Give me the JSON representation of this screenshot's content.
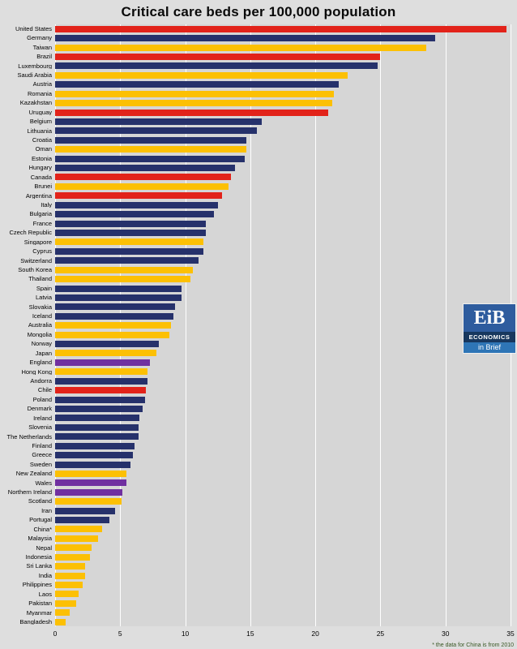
{
  "footnote": "* the data for China is from 2010",
  "logo": {
    "main": "EiB",
    "line1": "ECONOMICS",
    "line2": "in Brief"
  },
  "colors": {
    "red": "#e2231a",
    "navy": "#26316b",
    "gold": "#fcc004",
    "purple": "#7030a0",
    "plot_bg": "#d6d6d6",
    "gridline": "#ffffff"
  },
  "chart_data": {
    "type": "bar",
    "orientation": "horizontal",
    "title": "Critical care beds per 100,000 population",
    "xlabel": "",
    "ylabel": "",
    "xlim": [
      0,
      35
    ],
    "xticks": [
      "0",
      "5",
      "10",
      "15",
      "20",
      "25",
      "30",
      "35"
    ],
    "grid": true,
    "legend": false,
    "bars": [
      {
        "label": "United States",
        "value": 34.7,
        "color": "red"
      },
      {
        "label": "Germany",
        "value": 29.2,
        "color": "navy"
      },
      {
        "label": "Taiwan",
        "value": 28.5,
        "color": "gold"
      },
      {
        "label": "Brazil",
        "value": 25.0,
        "color": "red"
      },
      {
        "label": "Luxembourg",
        "value": 24.8,
        "color": "navy"
      },
      {
        "label": "Saudi Arabia",
        "value": 22.5,
        "color": "gold"
      },
      {
        "label": "Austria",
        "value": 21.8,
        "color": "navy"
      },
      {
        "label": "Romania",
        "value": 21.4,
        "color": "gold"
      },
      {
        "label": "Kazakhstan",
        "value": 21.3,
        "color": "gold"
      },
      {
        "label": "Uruguay",
        "value": 21.0,
        "color": "red"
      },
      {
        "label": "Belgium",
        "value": 15.9,
        "color": "navy"
      },
      {
        "label": "Lithuania",
        "value": 15.5,
        "color": "navy"
      },
      {
        "label": "Croatia",
        "value": 14.7,
        "color": "navy"
      },
      {
        "label": "Oman",
        "value": 14.7,
        "color": "gold"
      },
      {
        "label": "Estonia",
        "value": 14.6,
        "color": "navy"
      },
      {
        "label": "Hungary",
        "value": 13.8,
        "color": "navy"
      },
      {
        "label": "Canada",
        "value": 13.5,
        "color": "red"
      },
      {
        "label": "Brunei",
        "value": 13.3,
        "color": "gold"
      },
      {
        "label": "Argentina",
        "value": 12.8,
        "color": "red"
      },
      {
        "label": "Italy",
        "value": 12.5,
        "color": "navy"
      },
      {
        "label": "Bulgaria",
        "value": 12.2,
        "color": "navy"
      },
      {
        "label": "France",
        "value": 11.6,
        "color": "navy"
      },
      {
        "label": "Czech Republic",
        "value": 11.6,
        "color": "navy"
      },
      {
        "label": "Singapore",
        "value": 11.4,
        "color": "gold"
      },
      {
        "label": "Cyprus",
        "value": 11.4,
        "color": "navy"
      },
      {
        "label": "Switzerland",
        "value": 11.0,
        "color": "navy"
      },
      {
        "label": "South Korea",
        "value": 10.6,
        "color": "gold"
      },
      {
        "label": "Thailand",
        "value": 10.4,
        "color": "gold"
      },
      {
        "label": "Spain",
        "value": 9.7,
        "color": "navy"
      },
      {
        "label": "Latvia",
        "value": 9.7,
        "color": "navy"
      },
      {
        "label": "Slovakia",
        "value": 9.2,
        "color": "navy"
      },
      {
        "label": "Iceland",
        "value": 9.1,
        "color": "navy"
      },
      {
        "label": "Australia",
        "value": 8.9,
        "color": "gold"
      },
      {
        "label": "Mongolia",
        "value": 8.8,
        "color": "gold"
      },
      {
        "label": "Norway",
        "value": 8.0,
        "color": "navy"
      },
      {
        "label": "Japan",
        "value": 7.8,
        "color": "gold"
      },
      {
        "label": "England",
        "value": 7.3,
        "color": "purple"
      },
      {
        "label": "Hong Kong",
        "value": 7.1,
        "color": "gold"
      },
      {
        "label": "Andorra",
        "value": 7.1,
        "color": "navy"
      },
      {
        "label": "Chile",
        "value": 7.0,
        "color": "red"
      },
      {
        "label": "Poland",
        "value": 6.9,
        "color": "navy"
      },
      {
        "label": "Denmark",
        "value": 6.7,
        "color": "navy"
      },
      {
        "label": "Ireland",
        "value": 6.5,
        "color": "navy"
      },
      {
        "label": "Slovenia",
        "value": 6.4,
        "color": "navy"
      },
      {
        "label": "The Netherlands",
        "value": 6.4,
        "color": "navy"
      },
      {
        "label": "Finland",
        "value": 6.1,
        "color": "navy"
      },
      {
        "label": "Greece",
        "value": 6.0,
        "color": "navy"
      },
      {
        "label": "Sweden",
        "value": 5.8,
        "color": "navy"
      },
      {
        "label": "New Zealand",
        "value": 5.5,
        "color": "gold"
      },
      {
        "label": "Wales",
        "value": 5.5,
        "color": "purple"
      },
      {
        "label": "Northern Ireland",
        "value": 5.2,
        "color": "purple"
      },
      {
        "label": "Scotland",
        "value": 5.1,
        "color": "gold"
      },
      {
        "label": "Iran",
        "value": 4.6,
        "color": "navy"
      },
      {
        "label": "Portugal",
        "value": 4.2,
        "color": "navy"
      },
      {
        "label": "China*",
        "value": 3.6,
        "color": "gold"
      },
      {
        "label": "Malaysia",
        "value": 3.3,
        "color": "gold"
      },
      {
        "label": "Nepal",
        "value": 2.8,
        "color": "gold"
      },
      {
        "label": "Indonesia",
        "value": 2.7,
        "color": "gold"
      },
      {
        "label": "Sri Lanka",
        "value": 2.3,
        "color": "gold"
      },
      {
        "label": "India",
        "value": 2.3,
        "color": "gold"
      },
      {
        "label": "Philippines",
        "value": 2.1,
        "color": "gold"
      },
      {
        "label": "Laos",
        "value": 1.8,
        "color": "gold"
      },
      {
        "label": "Pakistan",
        "value": 1.6,
        "color": "gold"
      },
      {
        "label": "Myanmar",
        "value": 1.1,
        "color": "gold"
      },
      {
        "label": "Bangladesh",
        "value": 0.8,
        "color": "gold"
      }
    ]
  }
}
